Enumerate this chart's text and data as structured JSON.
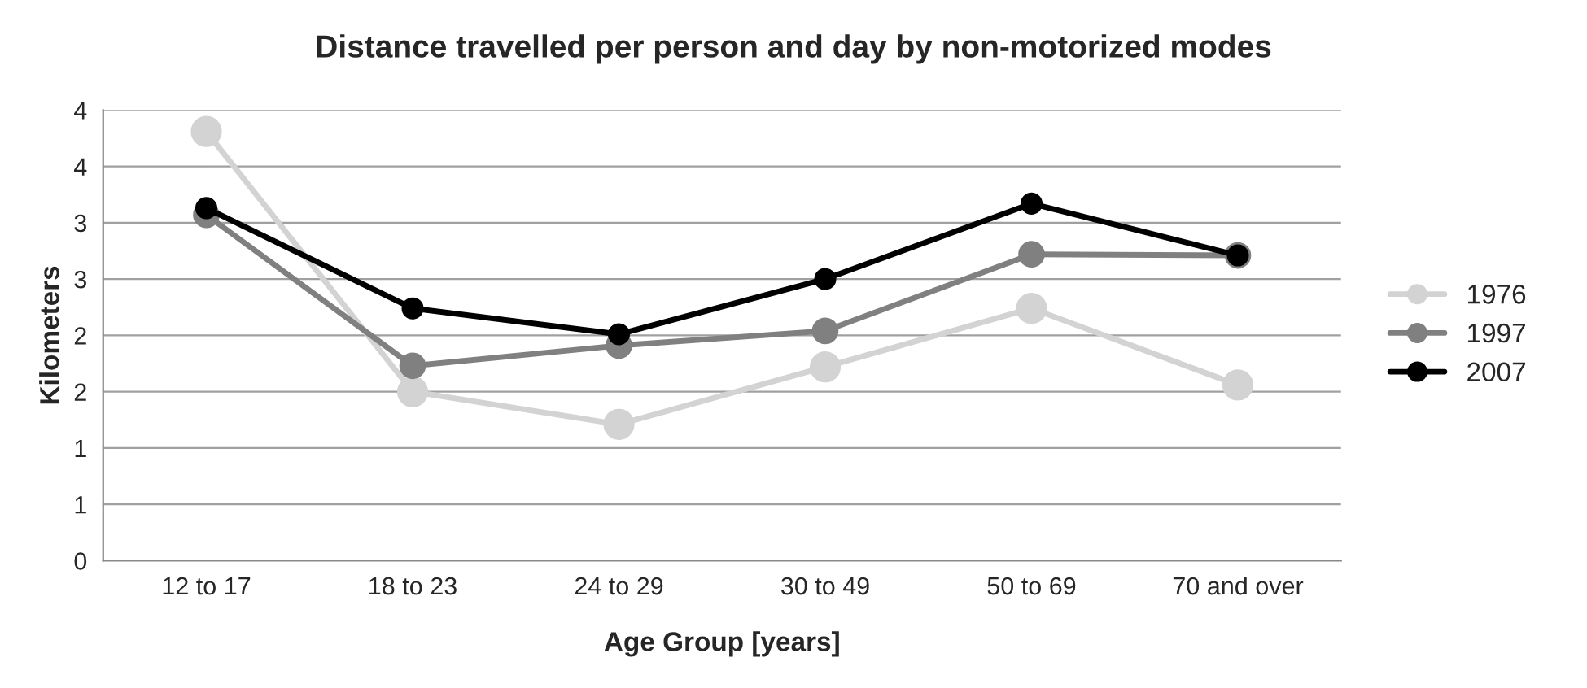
{
  "chart_data": {
    "type": "line",
    "title": "Distance travelled per person and day by non-motorized modes",
    "xlabel": "Age Group [years]",
    "ylabel": "Kilometers",
    "categories": [
      "12 to 17",
      "18 to 23",
      "24 to 29",
      "30 to 49",
      "50 to 69",
      "70 and over"
    ],
    "series": [
      {
        "name": "1976",
        "color": "#d3d3d3",
        "values": [
          3.81,
          1.5,
          1.21,
          1.72,
          2.24,
          1.56
        ]
      },
      {
        "name": "1997",
        "color": "#808080",
        "values": [
          3.07,
          1.73,
          1.91,
          2.04,
          2.72,
          2.71
        ]
      },
      {
        "name": "2007",
        "color": "#000000",
        "values": [
          3.13,
          2.24,
          2.01,
          2.5,
          3.17,
          2.71
        ]
      }
    ],
    "ylim": [
      0,
      4
    ],
    "yticks": [
      0,
      {
        "value": 0.5,
        "label": "1"
      },
      1,
      {
        "value": 1.5,
        "label": "2"
      },
      2,
      {
        "value": 2.5,
        "label": "3"
      },
      3,
      {
        "value": 3.5,
        "label": "4"
      },
      4
    ],
    "grid": "y",
    "legend": "right",
    "marker": "circle",
    "line_style": "solid"
  }
}
